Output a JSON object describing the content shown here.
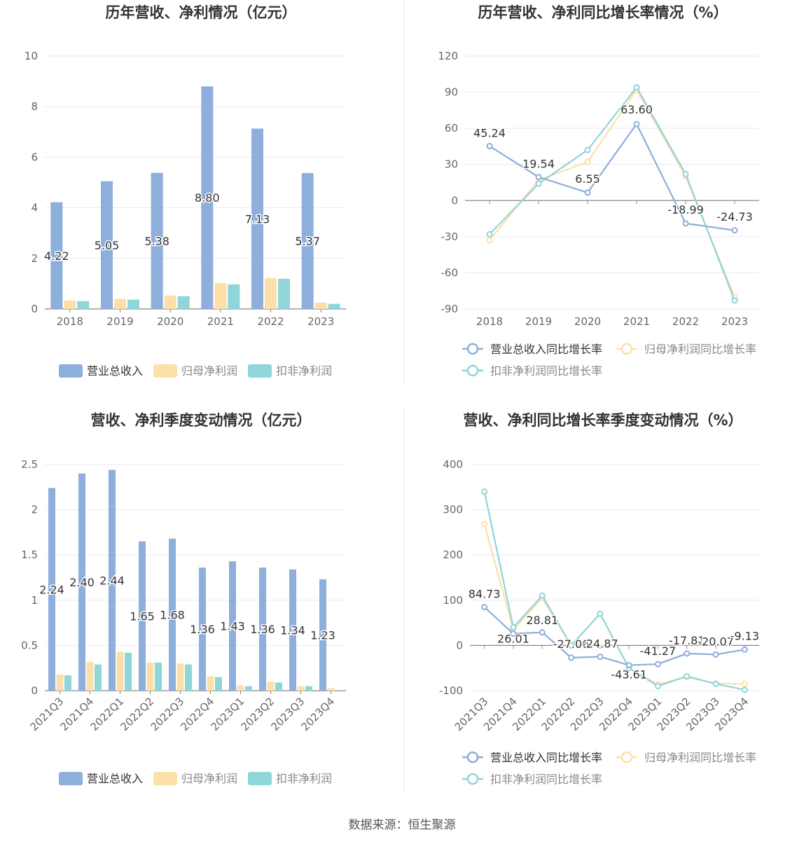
{
  "source": "数据来源：恒生聚源",
  "colors": {
    "revenue": "#8eaedc",
    "net": "#fde0a9",
    "deducted": "#8fd6d8"
  },
  "chart_data": [
    {
      "type": "bar",
      "title": "历年营收、净利情况（亿元）",
      "categories": [
        "2018",
        "2019",
        "2020",
        "2021",
        "2022",
        "2023"
      ],
      "ylim": [
        0,
        10
      ],
      "yticks": [
        0,
        2,
        4,
        6,
        8,
        10
      ],
      "ytick_labels": [
        "0",
        "2",
        "4",
        "6",
        "8",
        "10"
      ],
      "series": [
        {
          "name": "营业总收入",
          "values": [
            4.22,
            5.05,
            5.38,
            8.8,
            7.13,
            5.37
          ],
          "labels": [
            "4.22",
            "5.05",
            "5.38",
            "8.80",
            "7.13",
            "5.37"
          ]
        },
        {
          "name": "归母净利润",
          "values": [
            0.33,
            0.4,
            0.53,
            1.02,
            1.22,
            0.25
          ]
        },
        {
          "name": "扣非净利润",
          "values": [
            0.31,
            0.37,
            0.5,
            0.97,
            1.19,
            0.2
          ]
        }
      ],
      "grid": true,
      "legend": "bottom"
    },
    {
      "type": "line",
      "title": "历年营收、净利同比增长率情况（%）",
      "categories": [
        "2018",
        "2019",
        "2020",
        "2021",
        "2022",
        "2023"
      ],
      "ylim": [
        -90,
        120
      ],
      "yticks": [
        -90,
        -60,
        -30,
        0,
        30,
        60,
        90,
        120
      ],
      "ytick_labels": [
        "-90",
        "-60",
        "-30",
        "0",
        "30",
        "60",
        "90",
        "120"
      ],
      "series": [
        {
          "name": "营业总收入同比增长率",
          "values": [
            45.24,
            19.54,
            6.55,
            63.6,
            -18.99,
            -24.73
          ],
          "labels": [
            "45.24",
            "19.54",
            "6.55",
            "63.60",
            "-18.99",
            "-24.73"
          ]
        },
        {
          "name": "归母净利润同比增长率",
          "values": [
            -33,
            17,
            32,
            92,
            20,
            -80
          ]
        },
        {
          "name": "扣非净利润同比增长率",
          "values": [
            -28,
            14,
            42,
            94,
            22,
            -83
          ]
        }
      ],
      "grid": true,
      "legend": "bottom"
    },
    {
      "type": "bar",
      "title": "营收、净利季度变动情况（亿元）",
      "categories": [
        "2021Q3",
        "2021Q4",
        "2022Q1",
        "2022Q2",
        "2022Q3",
        "2022Q4",
        "2023Q1",
        "2023Q2",
        "2023Q3",
        "2023Q4"
      ],
      "ylim": [
        0,
        2.5
      ],
      "yticks": [
        0,
        0.5,
        1,
        1.5,
        2,
        2.5
      ],
      "ytick_labels": [
        "0",
        "0.5",
        "1",
        "1.5",
        "2",
        "2.5"
      ],
      "series": [
        {
          "name": "营业总收入",
          "values": [
            2.24,
            2.4,
            2.44,
            1.65,
            1.68,
            1.36,
            1.43,
            1.36,
            1.34,
            1.23
          ],
          "labels": [
            "2.24",
            "2.40",
            "2.44",
            "1.65",
            "1.68",
            "1.36",
            "1.43",
            "1.36",
            "1.34",
            "1.23"
          ]
        },
        {
          "name": "归母净利润",
          "values": [
            0.18,
            0.32,
            0.43,
            0.31,
            0.3,
            0.16,
            0.06,
            0.1,
            0.05,
            0.03
          ]
        },
        {
          "name": "扣非净利润",
          "values": [
            0.17,
            0.29,
            0.42,
            0.31,
            0.29,
            0.15,
            0.05,
            0.09,
            0.05,
            0.0
          ]
        }
      ],
      "grid": true,
      "legend": "bottom"
    },
    {
      "type": "line",
      "title": "营收、净利同比增长率季度变动情况（%）",
      "categories": [
        "2021Q3",
        "2021Q4",
        "2022Q1",
        "2022Q2",
        "2022Q3",
        "2022Q4",
        "2023Q1",
        "2023Q2",
        "2023Q3",
        "2023Q4"
      ],
      "ylim": [
        -100,
        400
      ],
      "yticks": [
        -100,
        0,
        100,
        200,
        300,
        400
      ],
      "ytick_labels": [
        "-100",
        "0",
        "100",
        "200",
        "300",
        "400"
      ],
      "series": [
        {
          "name": "营业总收入同比增长率",
          "values": [
            84.73,
            26.01,
            28.81,
            -27.06,
            -24.87,
            -43.61,
            -41.27,
            -17.81,
            -20.07,
            -9.13
          ],
          "labels": [
            "84.73",
            "26.01",
            "28.81",
            "-27.06",
            "-24.87",
            "-43.61",
            "-41.27",
            "-17.81",
            "-20.07",
            "-9.13"
          ]
        },
        {
          "name": "归母净利润同比增长率",
          "values": [
            268,
            35,
            105,
            0,
            70,
            -50,
            -86,
            -70,
            -84,
            -85
          ]
        },
        {
          "name": "扣非净利润同比增长率",
          "values": [
            340,
            40,
            110,
            0,
            70,
            -50,
            -90,
            -68,
            -85,
            -98
          ]
        }
      ],
      "grid": true,
      "legend": "bottom"
    }
  ]
}
